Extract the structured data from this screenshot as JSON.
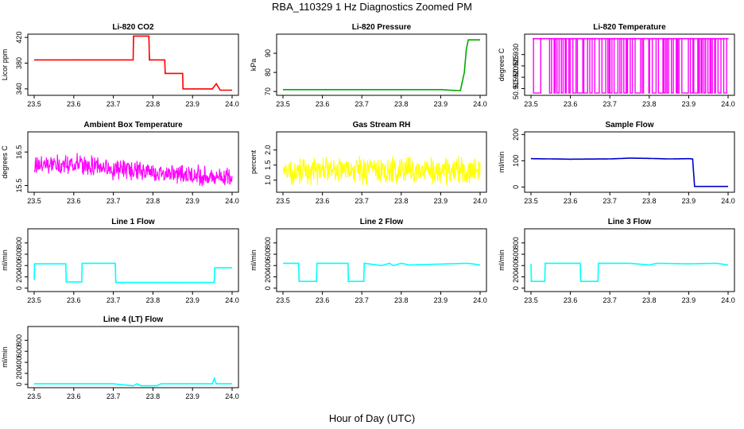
{
  "figure": {
    "title": "RBA_110329  1 Hz Diagnostics Zoomed PM",
    "xlabel": "Hour of Day (UTC)"
  },
  "chart_data": [
    {
      "type": "line",
      "title": "Li-820 CO2",
      "ylabel": "Licor ppm",
      "color": "#ff0000",
      "xlim": [
        23.5,
        24.0
      ],
      "ylim": [
        330,
        425
      ],
      "yticks": [
        340,
        380,
        420
      ],
      "xticks": [
        23.5,
        23.6,
        23.7,
        23.8,
        23.9,
        24.0
      ],
      "series": [
        {
          "x": [
            23.5,
            23.6,
            23.7,
            23.75,
            23.751,
            23.79,
            23.791,
            23.83,
            23.831,
            23.875,
            23.876,
            23.95,
            23.96,
            23.97,
            24.0
          ],
          "values": [
            385,
            385,
            385,
            385,
            422,
            422,
            385,
            385,
            364,
            364,
            340,
            340,
            348,
            338,
            338
          ]
        }
      ]
    },
    {
      "type": "line",
      "title": "Li-820 Pressure",
      "ylabel": "kPa",
      "color": "#00aa00",
      "xlim": [
        23.5,
        24.0
      ],
      "ylim": [
        68,
        100
      ],
      "yticks": [
        70,
        80,
        90
      ],
      "xticks": [
        23.5,
        23.6,
        23.7,
        23.8,
        23.9,
        24.0
      ],
      "series": [
        {
          "x": [
            23.5,
            23.6,
            23.7,
            23.8,
            23.9,
            23.94,
            23.95,
            23.96,
            23.965,
            23.97,
            24.0
          ],
          "values": [
            71,
            71,
            71,
            71,
            71,
            70.5,
            70.5,
            80,
            92,
            97,
            97
          ]
        }
      ]
    },
    {
      "type": "line",
      "title": "Li-820 Temperature",
      "ylabel": "degrees C",
      "color": "#ff00ff",
      "xlim": [
        23.5,
        24.0
      ],
      "ylim": [
        50.912,
        50.939
      ],
      "yticks": [
        50.915,
        50.92,
        50.925,
        50.93
      ],
      "ytick_labels": [
        "50.915",
        "50.920",
        "50.925",
        "50.930"
      ],
      "xticks": [
        23.5,
        23.6,
        23.7,
        23.8,
        23.9,
        24.0
      ],
      "levels": [
        50.913,
        50.937
      ],
      "note_switching": "rapid switching between two levels"
    },
    {
      "type": "line",
      "title": "Ambient Box Temperature",
      "ylabel": "degrees C",
      "color": "#ff00ff",
      "xlim": [
        23.5,
        24.0
      ],
      "ylim": [
        15.3,
        17.1
      ],
      "yticks": [
        15.5,
        16.5
      ],
      "xticks": [
        23.5,
        23.6,
        23.7,
        23.8,
        23.9,
        24.0
      ],
      "noise_centers": {
        "x": [
          23.5,
          23.6,
          23.7,
          23.8,
          23.9,
          24.0
        ],
        "values": [
          16.1,
          16.15,
          16.0,
          15.9,
          15.8,
          15.75
        ]
      },
      "noise_amplitude": 0.35
    },
    {
      "type": "line",
      "title": "Gas Stream RH",
      "ylabel": "percent",
      "color": "#ffff00",
      "xlim": [
        23.5,
        24.0
      ],
      "ylim": [
        0.6,
        2.6
      ],
      "yticks": [
        1.0,
        1.5,
        2.0
      ],
      "ytick_labels": [
        "1.0",
        "1.5",
        "2.0"
      ],
      "xticks": [
        23.5,
        23.6,
        23.7,
        23.8,
        23.9,
        24.0
      ],
      "noise_centers": {
        "x": [
          23.5,
          24.0
        ],
        "values": [
          1.3,
          1.3
        ]
      },
      "noise_amplitude": 0.55
    },
    {
      "type": "line",
      "title": "Sample Flow",
      "ylabel": "ml/min",
      "color": "#0000cc",
      "xlim": [
        23.5,
        24.0
      ],
      "ylim": [
        -20,
        210
      ],
      "yticks": [
        0,
        100,
        200
      ],
      "xticks": [
        23.5,
        23.6,
        23.7,
        23.8,
        23.9,
        24.0
      ],
      "series": [
        {
          "x": [
            23.5,
            23.6,
            23.7,
            23.75,
            23.8,
            23.85,
            23.9,
            23.91,
            23.915,
            23.92,
            24.0
          ],
          "values": [
            108,
            106,
            107,
            110,
            109,
            107,
            108,
            107,
            2,
            2,
            2
          ]
        }
      ]
    },
    {
      "type": "line",
      "title": "Line 1 Flow",
      "ylabel": "ml/min",
      "color": "#00ffff",
      "xlim": [
        23.5,
        24.0
      ],
      "ylim": [
        -60,
        1050
      ],
      "yticks": [
        0,
        200,
        400,
        600,
        800
      ],
      "xticks": [
        23.5,
        23.6,
        23.7,
        23.8,
        23.9,
        24.0
      ],
      "series": [
        {
          "x": [
            23.5,
            23.501,
            23.58,
            23.581,
            23.62,
            23.621,
            23.705,
            23.706,
            23.955,
            23.956,
            24.0
          ],
          "values": [
            150,
            430,
            430,
            110,
            110,
            440,
            440,
            100,
            100,
            360,
            360
          ]
        }
      ]
    },
    {
      "type": "line",
      "title": "Line 2 Flow",
      "ylabel": "ml/min",
      "color": "#00ffff",
      "xlim": [
        23.5,
        24.0
      ],
      "ylim": [
        -60,
        1050
      ],
      "yticks": [
        0,
        200,
        400,
        600,
        800
      ],
      "xticks": [
        23.5,
        23.6,
        23.7,
        23.8,
        23.9,
        24.0
      ],
      "series": [
        {
          "x": [
            23.5,
            23.54,
            23.541,
            23.585,
            23.586,
            23.665,
            23.666,
            23.705,
            23.706,
            23.75,
            23.77,
            23.78,
            23.8,
            23.82,
            23.97,
            24.0
          ],
          "values": [
            440,
            440,
            120,
            120,
            440,
            440,
            120,
            120,
            440,
            400,
            440,
            400,
            440,
            410,
            440,
            410
          ]
        }
      ]
    },
    {
      "type": "line",
      "title": "Line 3 Flow",
      "ylabel": "ml/min",
      "color": "#00ffff",
      "xlim": [
        23.5,
        24.0
      ],
      "ylim": [
        -60,
        1050
      ],
      "yticks": [
        0,
        200,
        400,
        600,
        800
      ],
      "xticks": [
        23.5,
        23.6,
        23.7,
        23.8,
        23.9,
        24.0
      ],
      "series": [
        {
          "x": [
            23.5,
            23.501,
            23.535,
            23.536,
            23.625,
            23.626,
            23.67,
            23.671,
            23.75,
            23.8,
            23.82,
            23.9,
            23.97,
            24.0
          ],
          "values": [
            430,
            120,
            120,
            440,
            440,
            120,
            120,
            440,
            440,
            410,
            440,
            430,
            440,
            410
          ]
        }
      ]
    },
    {
      "type": "line",
      "title": "Line 4 (LT) Flow",
      "ylabel": "ml/min",
      "color": "#00ffff",
      "xlim": [
        23.5,
        24.0
      ],
      "ylim": [
        -60,
        1050
      ],
      "yticks": [
        0,
        200,
        400,
        600,
        800
      ],
      "xticks": [
        23.5,
        23.6,
        23.7,
        23.8,
        23.9,
        24.0
      ],
      "series": [
        {
          "x": [
            23.5,
            23.7,
            23.75,
            23.76,
            23.77,
            23.8,
            23.81,
            23.82,
            23.95,
            23.955,
            23.96,
            24.0
          ],
          "values": [
            10,
            10,
            -25,
            10,
            -25,
            -25,
            -25,
            10,
            10,
            110,
            10,
            10
          ]
        }
      ]
    }
  ]
}
